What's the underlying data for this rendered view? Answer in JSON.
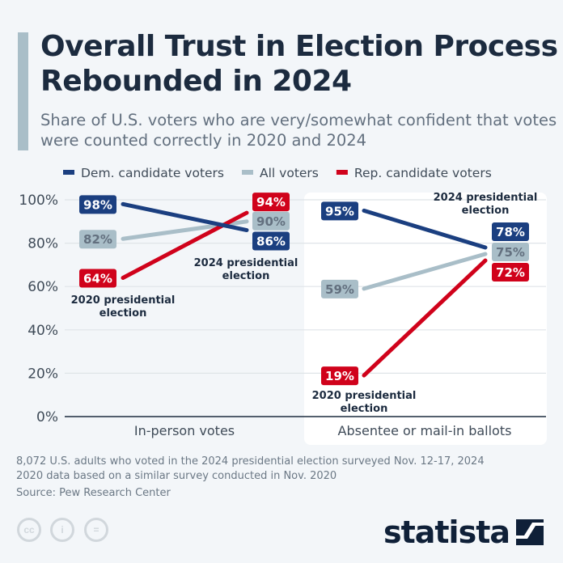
{
  "header": {
    "title": "Overall Trust in Election Process Rebounded in 2024",
    "subtitle": "Share of U.S. voters who are very/somewhat confident that votes were counted correctly in 2020 and 2024"
  },
  "chart_data": {
    "type": "line",
    "ylim": [
      0,
      100
    ],
    "yticks": [
      "0%",
      "20%",
      "40%",
      "60%",
      "80%",
      "100%"
    ],
    "grid": true,
    "legend_position": "top",
    "panels": [
      {
        "category": "In-person votes",
        "x": [
          "2020 presidential election",
          "2024 presidential election"
        ],
        "series": [
          {
            "name": "Dem. candidate voters",
            "values": [
              98,
              86
            ]
          },
          {
            "name": "All voters",
            "values": [
              82,
              90
            ]
          },
          {
            "name": "Rep. candidate voters",
            "values": [
              64,
              94
            ]
          }
        ]
      },
      {
        "category": "Absentee or mail-in ballots",
        "x": [
          "2020 presidential election",
          "2024 presidential election"
        ],
        "series": [
          {
            "name": "Dem. candidate voters",
            "values": [
              95,
              78
            ]
          },
          {
            "name": "All voters",
            "values": [
              59,
              75
            ]
          },
          {
            "name": "Rep. candidate voters",
            "values": [
              19,
              72
            ]
          }
        ]
      }
    ],
    "colors": {
      "Dem. candidate voters": "#1b3f80",
      "All voters": "#a9bec8",
      "Rep. candidate voters": "#d0021b"
    },
    "annotations": {
      "e2020": "2020 presidential election",
      "e2024": "2024 presidential election"
    }
  },
  "footer": {
    "note1": "8,072 U.S. adults who voted in the 2024 presidential election surveyed Nov. 12-17, 2024",
    "note2": "2020 data based on a similar survey conducted in Nov. 2020",
    "source": "Source: Pew Research Center",
    "brand": "statista",
    "license_icons": [
      "cc",
      "by",
      "nd"
    ]
  }
}
